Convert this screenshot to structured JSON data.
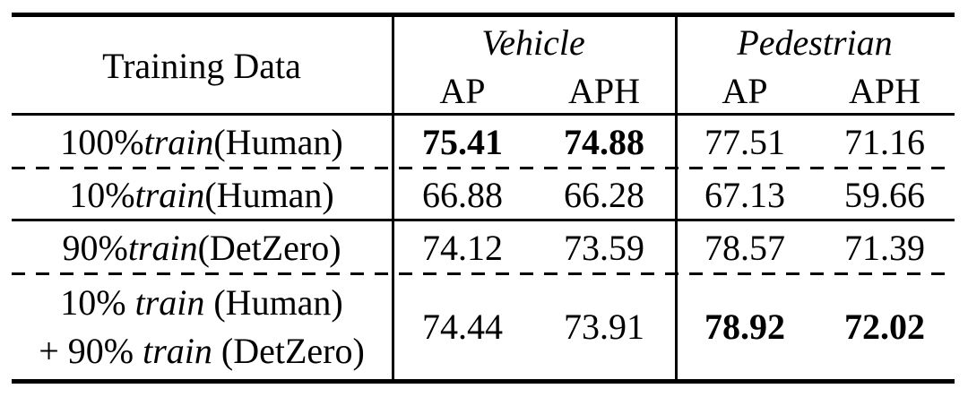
{
  "table": {
    "header": {
      "training_data": "Training Data",
      "groups": [
        {
          "name": "Vehicle",
          "cols": [
            "AP",
            "APH"
          ]
        },
        {
          "name": "Pedestrian",
          "cols": [
            "AP",
            "APH"
          ]
        }
      ]
    },
    "rows": [
      {
        "label": {
          "pre": "100% ",
          "it": "train",
          "post": " (Human)"
        },
        "values": [
          "75.41",
          "74.88",
          "77.51",
          "71.16"
        ]
      },
      {
        "label": {
          "pre": "10% ",
          "it": "train",
          "post": "(Human)"
        },
        "values": [
          "66.88",
          "66.28",
          "67.13",
          "59.66"
        ]
      },
      {
        "label": {
          "pre": "90% ",
          "it": "train",
          "post": " (DetZero)"
        },
        "values": [
          "74.12",
          "73.59",
          "78.57",
          "71.39"
        ]
      },
      {
        "label_lines": [
          {
            "pre": "10% ",
            "it": "train",
            "post": " (Human)"
          },
          {
            "pre": "+ 90% ",
            "it": "train",
            "post": " (DetZero)"
          }
        ],
        "values": [
          "74.44",
          "73.91",
          "78.92",
          "72.02"
        ]
      }
    ],
    "bold_values": [
      "75.41",
      "74.88",
      "78.92",
      "72.02"
    ],
    "line_color": "#000000",
    "background_color": "#ffffff"
  },
  "chart_data": {
    "type": "table",
    "columns": [
      "Training Data",
      "Vehicle AP",
      "Vehicle APH",
      "Pedestrian AP",
      "Pedestrian APH"
    ],
    "rows": [
      [
        "100% train (Human)",
        75.41,
        74.88,
        77.51,
        71.16
      ],
      [
        "10% train (Human)",
        66.88,
        66.28,
        67.13,
        59.66
      ],
      [
        "90% train (DetZero)",
        74.12,
        73.59,
        78.57,
        71.39
      ],
      [
        "10% train (Human) + 90% train (DetZero)",
        74.44,
        73.91,
        78.92,
        72.02
      ]
    ],
    "bold_cells": [
      [
        0,
        1
      ],
      [
        0,
        2
      ],
      [
        3,
        3
      ],
      [
        3,
        4
      ]
    ]
  }
}
